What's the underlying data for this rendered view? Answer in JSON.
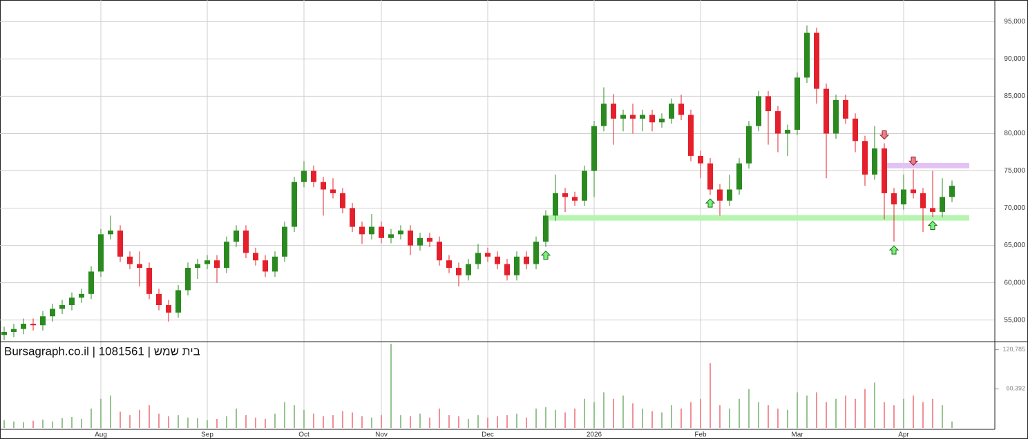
{
  "chart_data": {
    "type": "candlestick",
    "watermark": "Bursagraph.co.il | 1081561 | בית שמש",
    "categories": [
      null,
      null,
      null,
      null,
      null,
      null,
      null,
      null,
      null,
      null,
      "Aug",
      null,
      null,
      null,
      null,
      null,
      null,
      null,
      null,
      null,
      null,
      "Sep",
      null,
      null,
      null,
      null,
      null,
      null,
      null,
      null,
      null,
      "Oct",
      null,
      null,
      null,
      null,
      null,
      null,
      null,
      "Nov",
      null,
      null,
      null,
      null,
      null,
      null,
      null,
      null,
      null,
      null,
      "Dec",
      null,
      null,
      null,
      null,
      null,
      null,
      null,
      null,
      null,
      null,
      "2026",
      null,
      null,
      null,
      null,
      null,
      null,
      null,
      null,
      null,
      null,
      "Feb",
      null,
      null,
      null,
      null,
      null,
      null,
      null,
      null,
      null,
      "Mar",
      null,
      null,
      null,
      null,
      null,
      null,
      null,
      null,
      null,
      null,
      "Apr",
      null,
      null,
      null,
      null,
      null
    ],
    "open": [
      53000,
      53400,
      53800,
      54500,
      54300,
      55500,
      56500,
      57000,
      58000,
      58500,
      61500,
      66500,
      67000,
      63500,
      62500,
      62000,
      58500,
      57000,
      56000,
      59000,
      62000,
      62500,
      63000,
      62000,
      65500,
      67000,
      64000,
      63000,
      61500,
      63500,
      67500,
      73500,
      75000,
      73500,
      72500,
      72000,
      70000,
      67500,
      66500,
      67500,
      66000,
      66500,
      67000,
      65000,
      66000,
      65500,
      63000,
      62000,
      61000,
      62500,
      64000,
      63500,
      62500,
      61000,
      63500,
      62500,
      65500,
      69000,
      72000,
      71500,
      71000,
      75000,
      81000,
      84000,
      82000,
      82500,
      82000,
      82500,
      81500,
      82000,
      84000,
      82500,
      77000,
      76000,
      72500,
      71000,
      72500,
      76000,
      81000,
      85000,
      83000,
      80000,
      80500,
      87500,
      93500,
      86000,
      80000,
      84500,
      82000,
      79000,
      74500,
      78000,
      72000,
      70500,
      72500,
      72000,
      70000,
      69500,
      71500
    ],
    "high": [
      54100,
      54500,
      55200,
      55200,
      56200,
      57200,
      57700,
      58700,
      59200,
      62200,
      67200,
      69000,
      67700,
      64200,
      64200,
      62700,
      59200,
      57700,
      59700,
      62700,
      63200,
      63700,
      63700,
      66200,
      67700,
      67700,
      64700,
      63700,
      64200,
      68200,
      74200,
      76300,
      75700,
      74200,
      74000,
      72700,
      70700,
      68200,
      69200,
      68200,
      67200,
      67700,
      67700,
      66700,
      66700,
      66200,
      63700,
      62700,
      63200,
      65200,
      64700,
      64200,
      63200,
      64200,
      64200,
      66200,
      69700,
      74500,
      72700,
      72200,
      75700,
      81700,
      86200,
      85300,
      83200,
      84000,
      83200,
      83200,
      82700,
      84700,
      85200,
      83200,
      77700,
      76700,
      73200,
      74500,
      76700,
      81700,
      85700,
      85700,
      83700,
      81200,
      88200,
      94500,
      94200,
      86700,
      85200,
      85200,
      82700,
      79700,
      81000,
      78700,
      72700,
      74500,
      75200,
      72700,
      75000,
      74000,
      73700
    ],
    "low": [
      52300,
      52700,
      53100,
      53600,
      53600,
      54800,
      55800,
      56300,
      57300,
      57800,
      60800,
      65800,
      62800,
      61800,
      59500,
      57800,
      56300,
      54800,
      55300,
      58300,
      60500,
      61800,
      60000,
      61300,
      64800,
      63300,
      62300,
      60800,
      60800,
      62800,
      66800,
      72800,
      72800,
      69000,
      71300,
      69300,
      66800,
      65200,
      65800,
      65300,
      65300,
      65800,
      63700,
      64300,
      64800,
      62300,
      61300,
      59500,
      60300,
      61800,
      62800,
      61800,
      60300,
      60300,
      61800,
      61800,
      64800,
      68300,
      69500,
      70300,
      70300,
      71500,
      80300,
      78500,
      80300,
      80000,
      80300,
      80300,
      80800,
      81300,
      81800,
      76300,
      74000,
      71800,
      69000,
      70300,
      71800,
      75300,
      80300,
      78500,
      77500,
      77000,
      79800,
      86800,
      84000,
      74000,
      79300,
      81300,
      77500,
      73000,
      73800,
      68500,
      65500,
      69800,
      71300,
      66800,
      68800,
      68800,
      70800
    ],
    "close": [
      53400,
      53800,
      54500,
      54300,
      55500,
      56500,
      57000,
      58000,
      58500,
      61500,
      66500,
      67000,
      63500,
      62500,
      62000,
      58500,
      57000,
      56000,
      59000,
      62000,
      62500,
      63000,
      62000,
      65500,
      67000,
      64000,
      63000,
      61500,
      63500,
      67500,
      73500,
      75000,
      73500,
      72500,
      72000,
      70000,
      67500,
      66500,
      67500,
      66000,
      66500,
      67000,
      65000,
      66000,
      65500,
      63000,
      62000,
      61000,
      62500,
      64000,
      63500,
      62500,
      61000,
      63500,
      62500,
      65500,
      69000,
      72000,
      71500,
      71000,
      75000,
      81000,
      84000,
      82000,
      82500,
      82000,
      82500,
      81500,
      82000,
      84000,
      82500,
      77000,
      76000,
      72500,
      71000,
      72500,
      76000,
      81000,
      85000,
      83000,
      80000,
      80500,
      87500,
      93500,
      86000,
      80000,
      84500,
      82000,
      79000,
      74500,
      78000,
      72000,
      70500,
      72500,
      72000,
      70000,
      69500,
      71500,
      73000
    ],
    "volume": [
      12000,
      10000,
      9000,
      11000,
      13000,
      10000,
      15000,
      17000,
      14000,
      30000,
      45000,
      50000,
      25000,
      20000,
      28000,
      35000,
      22000,
      18000,
      20000,
      16000,
      15000,
      12000,
      14000,
      18000,
      30000,
      20000,
      16000,
      14000,
      22000,
      40000,
      35000,
      28000,
      22000,
      18000,
      20000,
      26000,
      24000,
      18000,
      16000,
      20000,
      130000,
      20000,
      18000,
      22000,
      16000,
      30000,
      20000,
      18000,
      14000,
      20000,
      16000,
      18000,
      20000,
      22000,
      16000,
      30000,
      32000,
      28000,
      24000,
      30000,
      45000,
      40000,
      55000,
      45000,
      50000,
      38000,
      30000,
      26000,
      24000,
      35000,
      30000,
      40000,
      45000,
      100000,
      35000,
      30000,
      45000,
      60000,
      40000,
      35000,
      30000,
      28000,
      55000,
      50000,
      55000,
      40000,
      45000,
      50000,
      45000,
      60000,
      70000,
      40000,
      35000,
      45000,
      50000,
      40000,
      45000,
      35000,
      10000
    ],
    "up_color": "#2a8a1f",
    "down_color": "#e3202b",
    "ylim": [
      52100,
      97900
    ],
    "yticks": [
      {
        "value": 55000,
        "label": "55,000"
      },
      {
        "value": 60000,
        "label": "60,000"
      },
      {
        "value": 65000,
        "label": "65,000"
      },
      {
        "value": 70000,
        "label": "70,000"
      },
      {
        "value": 75000,
        "label": "75,000"
      },
      {
        "value": 80000,
        "label": "80,000"
      },
      {
        "value": 85000,
        "label": "85,000"
      },
      {
        "value": 90000,
        "label": "90,000"
      },
      {
        "value": 95000,
        "label": "95,000"
      }
    ],
    "y2lim": [
      0,
      131000
    ],
    "y2ticks": [
      {
        "value": 60392,
        "label": "60,392"
      },
      {
        "value": 120785,
        "label": "120,785"
      }
    ],
    "levels": [
      {
        "value": 68700,
        "color": "#b6f5b0"
      },
      {
        "value": 75700,
        "color": "#e3c3f3"
      }
    ],
    "buy_signals": [
      56,
      73,
      92,
      96
    ],
    "sell_signals": [
      91,
      94
    ],
    "grid": true
  }
}
